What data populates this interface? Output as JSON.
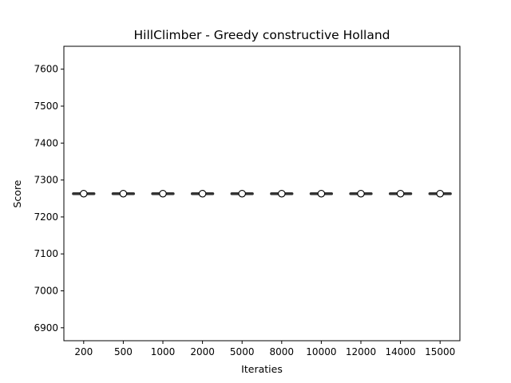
{
  "chart_data": {
    "type": "boxplot",
    "title": "HillClimber - Greedy constructive Holland",
    "xlabel": "Iteraties",
    "ylabel": "Score",
    "categories": [
      "200",
      "500",
      "1000",
      "2000",
      "5000",
      "8000",
      "10000",
      "12000",
      "14000",
      "15000"
    ],
    "values": [
      7263,
      7263,
      7263,
      7263,
      7263,
      7263,
      7263,
      7263,
      7263,
      7263
    ],
    "ylim": [
      6865,
      7662
    ],
    "yticks": [
      6900,
      7000,
      7100,
      7200,
      7300,
      7400,
      7500,
      7600
    ],
    "grid": false,
    "colors": {
      "box": "#333333",
      "mean_marker_fill": "#ffffff",
      "mean_marker_edge": "#000000"
    }
  }
}
